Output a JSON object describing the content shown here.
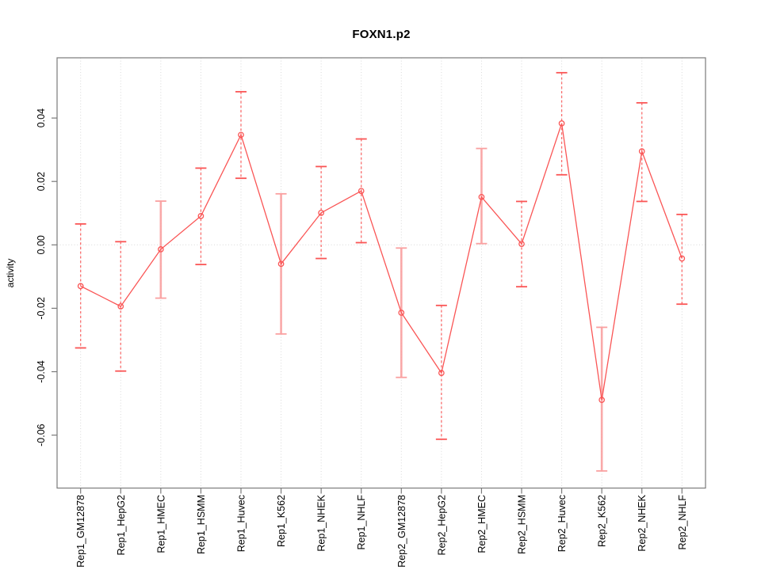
{
  "chart_data": {
    "type": "line",
    "subtype": "points-with-error-bars",
    "title": "FOXN1.p2",
    "xlabel": "",
    "ylabel": "activity",
    "categories": [
      "Rep1_GM12878",
      "Rep1_HepG2",
      "Rep1_HMEC",
      "Rep1_HSMM",
      "Rep1_Huvec",
      "Rep1_K562",
      "Rep1_NHEK",
      "Rep1_NHLF",
      "Rep2_GM12878",
      "Rep2_HepG2",
      "Rep2_HMEC",
      "Rep2_HSMM",
      "Rep2_Huvec",
      "Rep2_K562",
      "Rep2_NHEK",
      "Rep2_NHLF"
    ],
    "series": [
      {
        "name": "activity",
        "values": [
          -0.013,
          -0.0194,
          -0.0014,
          0.0091,
          0.0347,
          -0.006,
          0.0101,
          0.017,
          -0.0214,
          -0.0404,
          0.0151,
          0.0003,
          0.0383,
          -0.0489,
          0.0295,
          -0.0043
        ],
        "upper": [
          0.0066,
          0.001,
          0.0138,
          0.0242,
          0.0483,
          0.0161,
          0.0247,
          0.0334,
          -0.001,
          -0.0191,
          0.0304,
          0.0137,
          0.0543,
          -0.026,
          0.0448,
          0.0096
        ],
        "lower": [
          -0.0325,
          -0.0398,
          -0.0168,
          -0.0062,
          0.021,
          -0.0281,
          -0.0043,
          0.0007,
          -0.0418,
          -0.0613,
          0.0004,
          -0.0132,
          0.0221,
          -0.0713,
          0.0137,
          -0.0187
        ],
        "bar_styles": [
          "dashed",
          "dashed",
          "light",
          "dashed",
          "dashed",
          "light",
          "dashed",
          "dashed",
          "light",
          "dashed",
          "light",
          "dashed",
          "dashed",
          "light",
          "dashed",
          "dashed"
        ]
      }
    ],
    "ylim": [
      -0.0767,
      0.059
    ],
    "yticks": [
      -0.06,
      -0.04,
      -0.02,
      0.0,
      0.02,
      0.04
    ],
    "ytick_labels": [
      "-0.06",
      "-0.04",
      "-0.02",
      "0.00",
      "0.02",
      "0.04"
    ],
    "grid": "vertical dotted gridlines at each category; dotted horizontal line at y=0",
    "legend": "none",
    "marker": "open-circle",
    "colors": {
      "line": "#fa5555",
      "marker": "#fa5555",
      "error_bar_light": "#faa0a0",
      "error_bar_dashed": "#fa5555",
      "gridline": "#d8d8d8",
      "axis_box": "#7a7a7a",
      "text": "#000000"
    }
  }
}
